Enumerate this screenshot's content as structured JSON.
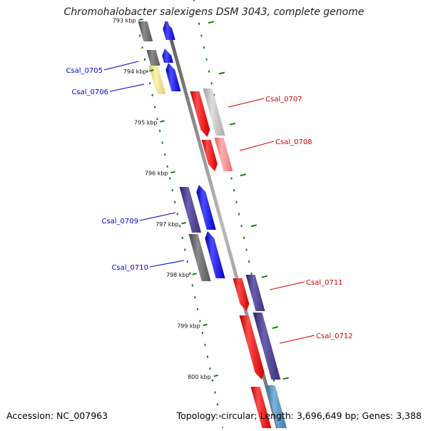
{
  "title": "Chromohalobacter salexigens DSM 3043, complete genome",
  "accession_text": "Accession: NC_007963",
  "summary_text": "Topology: circular; Length: 3,696,649 bp; Genes: 3,388",
  "axis": {
    "ticks": [
      {
        "label": "793 kbp",
        "kbp": 793
      },
      {
        "label": "794 kbp",
        "kbp": 794
      },
      {
        "label": "795 kbp",
        "kbp": 795
      },
      {
        "label": "796 kbp",
        "kbp": 796
      },
      {
        "label": "797 kbp",
        "kbp": 797
      },
      {
        "label": "798 kbp",
        "kbp": 798
      },
      {
        "label": "799 kbp",
        "kbp": 799
      },
      {
        "label": "800 kbp",
        "kbp": 800
      }
    ]
  },
  "genes": [
    {
      "name": "Csal_0705",
      "strand": "forward",
      "color": "#0000cc"
    },
    {
      "name": "Csal_0706",
      "strand": "forward",
      "color": "#0000cc"
    },
    {
      "name": "Csal_0707",
      "strand": "reverse",
      "color": "#cc0000"
    },
    {
      "name": "Csal_0708",
      "strand": "reverse",
      "color": "#cc0000"
    },
    {
      "name": "Csal_0709",
      "strand": "forward",
      "color": "#0000cc"
    },
    {
      "name": "Csal_0710",
      "strand": "forward",
      "color": "#0000cc"
    },
    {
      "name": "Csal_0711",
      "strand": "reverse",
      "color": "#cc0000"
    },
    {
      "name": "Csal_0712",
      "strand": "reverse",
      "color": "#cc0000"
    }
  ],
  "colors": {
    "forward_cds": "#0000ff",
    "reverse_cds": "#ff0000",
    "cog_purple": "#4b3f8c",
    "cog_gray": "#6e6e6e",
    "cog_yellow": "#f0e08a",
    "cog_lightgray": "#b8b8b8",
    "cog_salmon": "#f08080",
    "cog_lightblue": "#4682b4",
    "tick_green": "#1a7a1a",
    "backbone": "#888888"
  }
}
